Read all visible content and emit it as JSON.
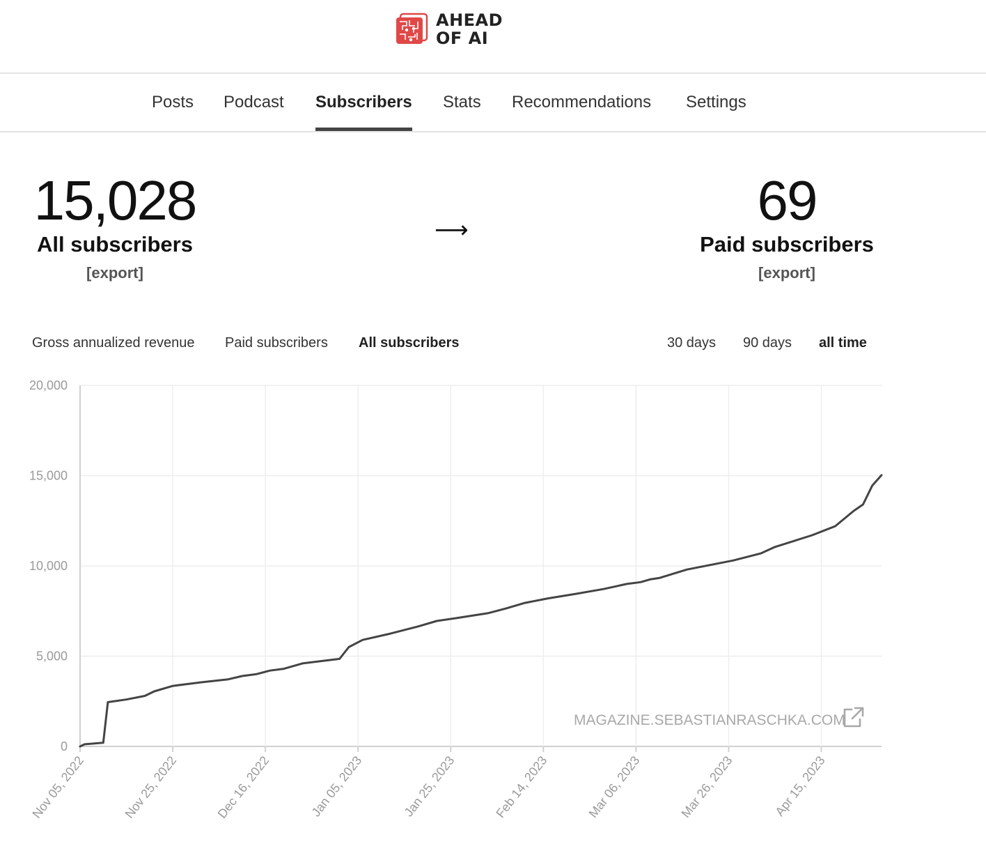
{
  "brand": {
    "name_line1": "AHEAD",
    "name_line2": "OF AI",
    "accent": "#e04848"
  },
  "nav": {
    "tabs": [
      {
        "label": "Posts",
        "active": false
      },
      {
        "label": "Podcast",
        "active": false
      },
      {
        "label": "Subscribers",
        "active": true
      },
      {
        "label": "Stats",
        "active": false
      },
      {
        "label": "Recommendations",
        "active": false
      },
      {
        "label": "Settings",
        "active": false
      }
    ]
  },
  "stats": {
    "all": {
      "value": "15,028",
      "label": "All subscribers",
      "export": "[export]"
    },
    "arrow": "⟶",
    "paid": {
      "value": "69",
      "label": "Paid subscribers",
      "export": "[export]"
    }
  },
  "metrics": [
    {
      "label": "Gross annualized revenue",
      "active": false
    },
    {
      "label": "Paid subscribers",
      "active": false
    },
    {
      "label": "All subscribers",
      "active": true
    }
  ],
  "ranges": [
    {
      "label": "30 days",
      "active": false
    },
    {
      "label": "90 days",
      "active": false
    },
    {
      "label": "all time",
      "active": true
    }
  ],
  "chart_data": {
    "type": "line",
    "xlabel": "",
    "ylabel": "",
    "ylim": [
      0,
      20000
    ],
    "y_ticks": [
      "0",
      "5,000",
      "10,000",
      "15,000",
      "20,000"
    ],
    "x_tick_labels": [
      "Nov 05, 2022",
      "Nov 25, 2022",
      "Dec 16, 2022",
      "Jan 05, 2023",
      "Jan 25, 2023",
      "Feb 14, 2023",
      "Mar 06, 2023",
      "Mar 26, 2023",
      "Apr 15, 2023"
    ],
    "grid": true,
    "line_color": "#444444",
    "watermark": "MAGAZINE.SEBASTIANRASCHKA.COM",
    "series": [
      {
        "x": [
          "2022-11-05",
          "2022-11-06",
          "2022-11-09",
          "2022-11-10",
          "2022-11-11",
          "2022-11-15",
          "2022-11-19",
          "2022-11-21",
          "2022-11-25",
          "2022-12-01",
          "2022-12-07",
          "2022-12-10",
          "2022-12-13",
          "2022-12-16",
          "2022-12-19",
          "2022-12-23",
          "2022-12-31",
          "2023-01-02",
          "2023-01-05",
          "2023-01-11",
          "2023-01-17",
          "2023-01-21",
          "2023-01-25",
          "2023-02-01",
          "2023-02-05",
          "2023-02-09",
          "2023-02-14",
          "2023-02-20",
          "2023-02-26",
          "2023-03-03",
          "2023-03-06",
          "2023-03-08",
          "2023-03-10",
          "2023-03-16",
          "2023-03-21",
          "2023-03-26",
          "2023-04-01",
          "2023-04-04",
          "2023-04-12",
          "2023-04-15",
          "2023-04-17",
          "2023-04-21",
          "2023-04-23",
          "2023-04-25",
          "2023-04-27"
        ],
        "y": [
          0,
          120,
          180,
          200,
          2450,
          2600,
          2800,
          3050,
          3350,
          3550,
          3720,
          3900,
          4000,
          4200,
          4300,
          4600,
          4850,
          5500,
          5900,
          6250,
          6650,
          6950,
          7100,
          7380,
          7650,
          7950,
          8200,
          8450,
          8720,
          9000,
          9100,
          9250,
          9330,
          9800,
          10050,
          10300,
          10700,
          11050,
          11700,
          12000,
          12200,
          13050,
          13400,
          14450,
          15028
        ]
      }
    ]
  }
}
